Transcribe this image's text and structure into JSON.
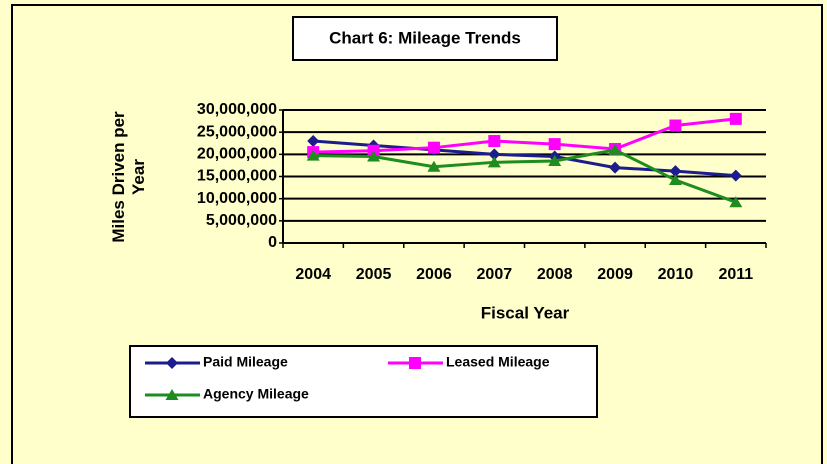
{
  "chart_data": {
    "type": "line",
    "title": "Chart 6:  Mileage Trends",
    "xlabel": "Fiscal Year",
    "ylabel": "Miles Driven per Year",
    "categories": [
      "2004",
      "2005",
      "2006",
      "2007",
      "2008",
      "2009",
      "2010",
      "2011"
    ],
    "series": [
      {
        "name": "Paid Mileage",
        "color": "#1c1c8c",
        "marker": "diamond",
        "values": [
          23000000,
          22000000,
          21000000,
          20000000,
          19500000,
          17000000,
          16200000,
          15200000
        ]
      },
      {
        "name": "Leased Mileage",
        "color": "#ff00ff",
        "marker": "square",
        "values": [
          20500000,
          20800000,
          21500000,
          23000000,
          22300000,
          21200000,
          26500000,
          28000000
        ]
      },
      {
        "name": "Agency Mileage",
        "color": "#1e8c1e",
        "marker": "triangle",
        "values": [
          19700000,
          19500000,
          17200000,
          18200000,
          18500000,
          21000000,
          14200000,
          9200000
        ]
      }
    ],
    "ylim": [
      0,
      30000000
    ],
    "yticks": [
      0,
      {
        "value": 5000000,
        "label": "5,000,000"
      },
      {
        "value": 10000000,
        "label": "10,000,000"
      },
      {
        "value": 15000000,
        "label": "15,000,000"
      },
      {
        "value": 20000000,
        "label": "20,000,000"
      },
      {
        "value": 25000000,
        "label": "25,000,000"
      },
      {
        "value": 30000000,
        "label": "30,000,000"
      }
    ],
    "grid": true
  }
}
